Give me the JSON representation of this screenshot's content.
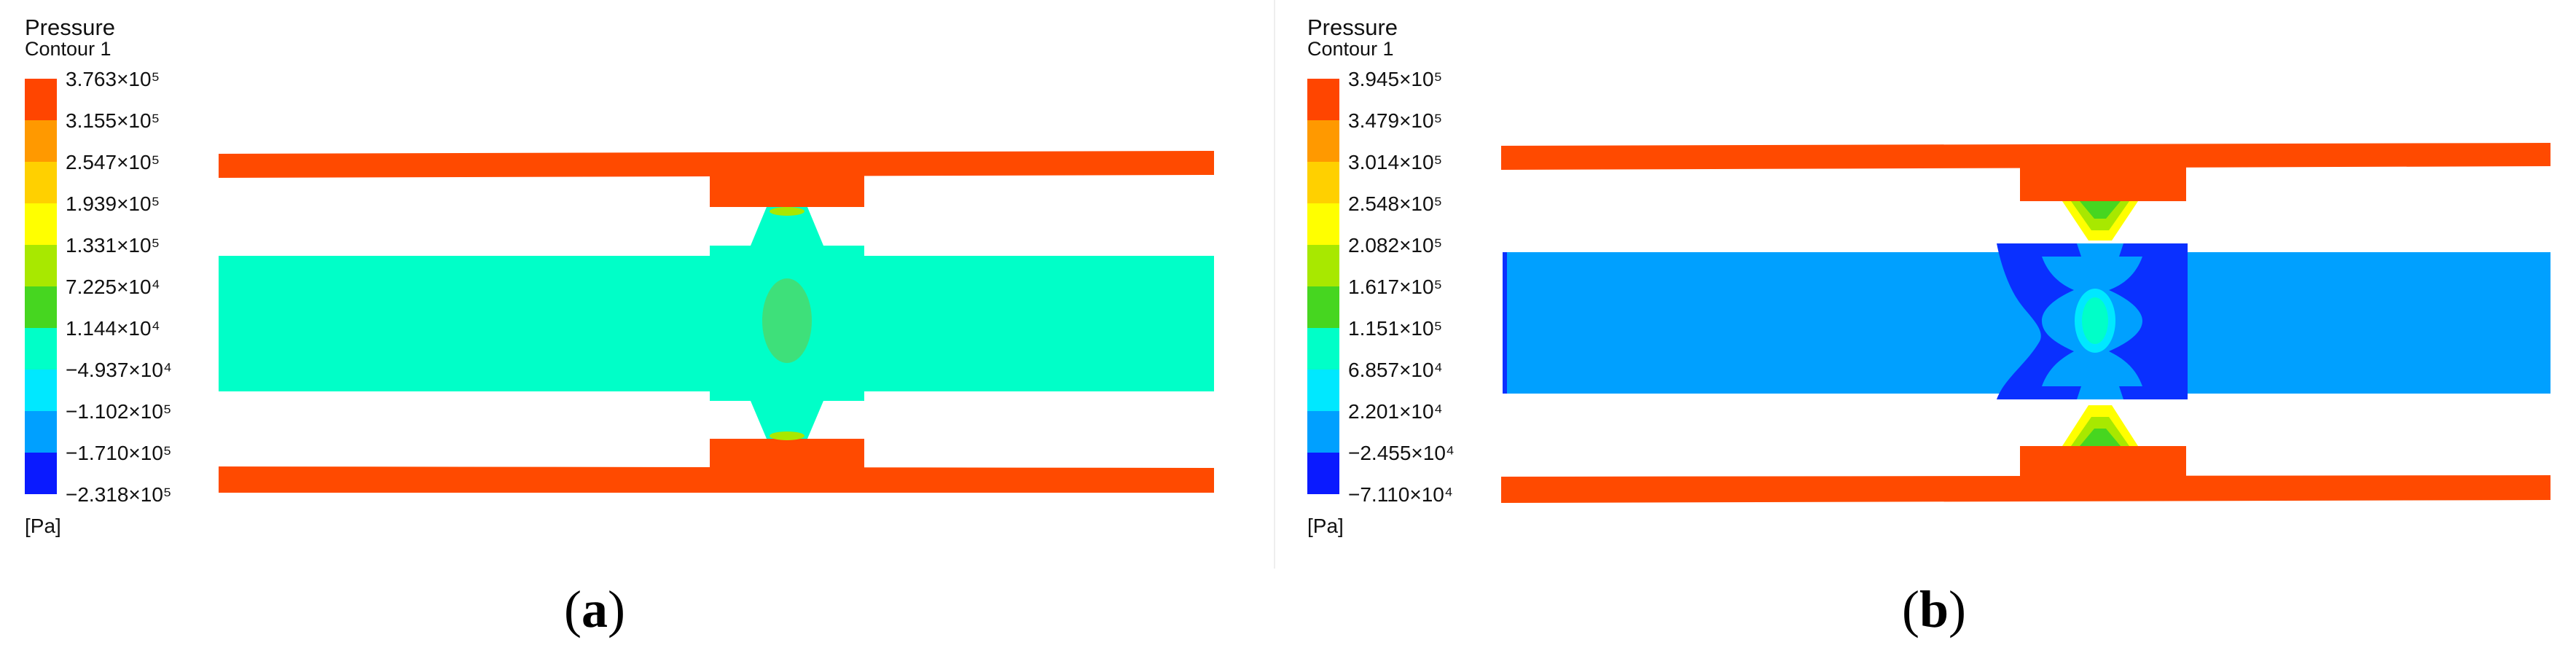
{
  "panels": [
    {
      "id": "a",
      "legend": {
        "title": "Pressure",
        "subtitle": "Contour 1",
        "levels": [
          "3.763×10⁵",
          "3.155×10⁵",
          "2.547×10⁵",
          "1.939×10⁵",
          "1.331×10⁵",
          "7.225×10⁴",
          "1.144×10⁴",
          "−4.937×10⁴",
          "−1.102×10⁵",
          "−1.710×10⁵",
          "−2.318×10⁵"
        ],
        "unit": "[Pa]"
      },
      "caption_letter": "a"
    },
    {
      "id": "b",
      "legend": {
        "title": "Pressure",
        "subtitle": "Contour 1",
        "levels": [
          "3.945×10⁵",
          "3.479×10⁵",
          "3.014×10⁵",
          "2.548×10⁵",
          "2.082×10⁵",
          "1.617×10⁵",
          "1.151×10⁵",
          "6.857×10⁴",
          "2.201×10⁴",
          "−2.455×10⁴",
          "−7.110×10⁴"
        ],
        "unit": "[Pa]"
      },
      "caption_letter": "b"
    }
  ],
  "colors": {
    "legend_scale": [
      "#ff4500",
      "#ff9900",
      "#ffd000",
      "#ffff00",
      "#a8e800",
      "#46d620",
      "#00ffc8",
      "#00e8ff",
      "#00a0ff",
      "#0064ff",
      "#0a1aff"
    ],
    "high_pressure": "#ff4a00",
    "fluid_a": "#00ffc8",
    "fluid_a_center": "#3ee07a",
    "fluid_b": "#00a0ff",
    "fluid_b_low": "#0a30ff",
    "fluid_b_center": "#00e8ff"
  }
}
